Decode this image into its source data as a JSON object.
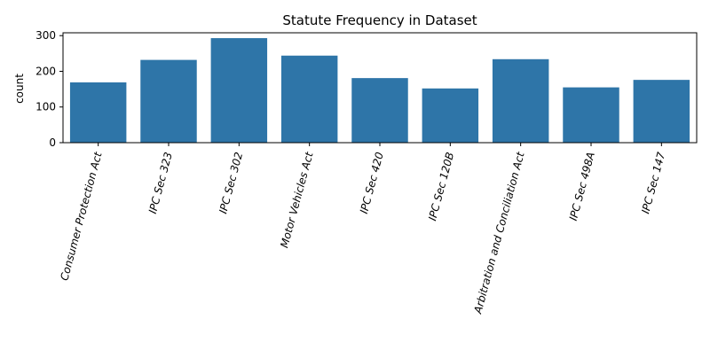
{
  "chart_data": {
    "type": "bar",
    "title": "Statute Frequency in Dataset",
    "xlabel": "",
    "ylabel": "count",
    "categories": [
      "Consumer Protection Act",
      "IPC Sec 323",
      "IPC Sec 302",
      "Motor Vehicles Act",
      "IPC Sec 420",
      "IPC Sec 120B",
      "Arbitration and Conciliation Act",
      "IPC Sec 498A",
      "IPC Sec 147"
    ],
    "values": [
      169,
      232,
      293,
      244,
      181,
      152,
      234,
      155,
      176
    ],
    "ylim": [
      0,
      308
    ],
    "yticks": [
      0,
      100,
      200,
      300
    ],
    "ytick_labels": [
      "0",
      "100",
      "200",
      "300"
    ],
    "bar_color": "#2e75a8",
    "grid": false,
    "legend": "none"
  }
}
